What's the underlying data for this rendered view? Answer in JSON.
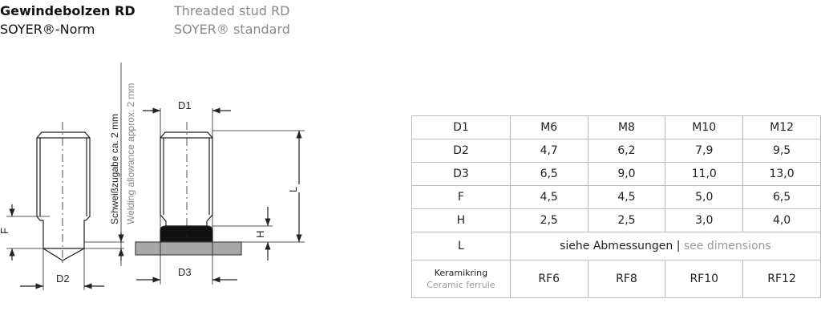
{
  "header": {
    "de_title": "Gewindebolzen RD",
    "de_subtitle": "SOYER®-Norm",
    "en_title": "Threaded stud RD",
    "en_subtitle": "SOYER® standard"
  },
  "drawing": {
    "labels": {
      "d1": "D1",
      "d2": "D2",
      "d3": "D3",
      "f": "F",
      "h": "H",
      "l": "L"
    },
    "allowance_de": "Schweißzugabe ca. 2 mm",
    "allowance_en": "Welding allowance approx. 2 mm"
  },
  "table": {
    "rows": [
      {
        "label": "D1",
        "values": [
          "M6",
          "M8",
          "M10",
          "M12"
        ]
      },
      {
        "label": "D2",
        "values": [
          "4,7",
          "6,2",
          "7,9",
          "9,5"
        ]
      },
      {
        "label": "D3",
        "values": [
          "6,5",
          "9,0",
          "11,0",
          "13,0"
        ]
      },
      {
        "label": "F",
        "values": [
          "4,5",
          "4,5",
          "5,0",
          "6,5"
        ]
      },
      {
        "label": "H",
        "values": [
          "2,5",
          "2,5",
          "3,0",
          "4,0"
        ]
      }
    ],
    "l_row": {
      "label": "L",
      "de": "siehe Abmessungen",
      "sep": "|",
      "en": "see dimensions"
    },
    "ferrule_row": {
      "label_de": "Keramikring",
      "label_en": "Ceramic ferrule",
      "values": [
        "RF6",
        "RF8",
        "RF10",
        "RF12"
      ]
    }
  }
}
